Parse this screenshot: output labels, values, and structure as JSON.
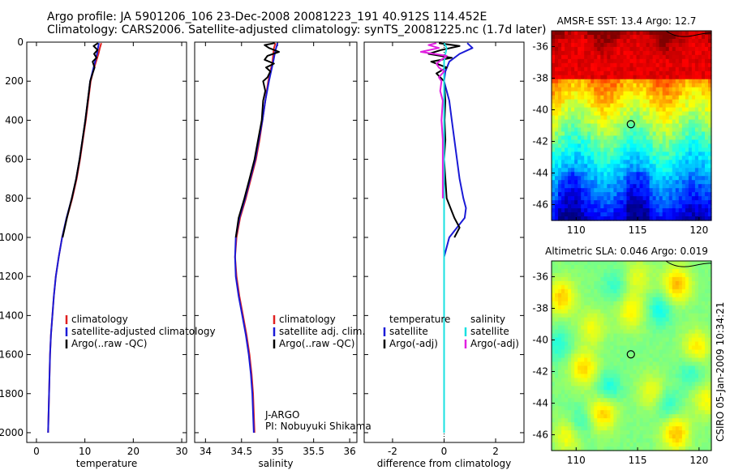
{
  "header": {
    "line1": "Argo profile: JA 5901206_106 23-Dec-2008 20081223_191 40.912S 114.452E",
    "line2": "Climatology: CARS2006. Satellite-adjusted climatology: synTS_20081225.nc (1.7d later)"
  },
  "side_label": "CSIRO 05-Jan-2009 10:34:21",
  "pi_label": {
    "line1": "J-ARGO",
    "line2": "PI: Nobuyuki Shikama"
  },
  "colors": {
    "climatology": "#e02020",
    "satellite": "#1a1ad6",
    "argo": "#000000",
    "salinity_satellite": "#19e0e0",
    "salinity_argo": "#e020e0"
  },
  "chart_data": [
    {
      "type": "line",
      "xlabel": "temperature",
      "ylim": [
        2050,
        0
      ],
      "xlim": [
        -2,
        31
      ],
      "xticks": [
        "0",
        "10",
        "20",
        "30"
      ],
      "yticks": [
        "0",
        "200",
        "400",
        "600",
        "800",
        "1000",
        "1200",
        "1400",
        "1600",
        "1800",
        "2000"
      ],
      "legend": [
        "climatology",
        "satellite-adjusted climatology",
        "Argo(..raw -QC)"
      ],
      "series": [
        {
          "name": "climatology",
          "y": [
            5,
            30,
            60,
            100,
            150,
            200,
            300,
            400,
            500,
            600,
            700,
            800,
            900,
            1000,
            1100,
            1200,
            1300,
            1400,
            1500,
            1600,
            1700,
            1800,
            1900,
            2000
          ],
          "x": [
            13.4,
            13.1,
            12.8,
            12.3,
            11.7,
            11.2,
            10.7,
            10.2,
            9.6,
            9.0,
            8.3,
            7.4,
            6.3,
            5.3,
            4.6,
            4.0,
            3.6,
            3.3,
            3.0,
            2.8,
            2.7,
            2.6,
            2.5,
            2.4
          ]
        },
        {
          "name": "satellite-adjusted climatology",
          "y": [
            5,
            30,
            60,
            100,
            150,
            200,
            300,
            400,
            500,
            600,
            700,
            800,
            900,
            1000,
            1100,
            1200,
            1300,
            1400,
            1500,
            1600,
            1700,
            1800,
            1900,
            2000
          ],
          "x": [
            12.9,
            12.7,
            12.5,
            12.1,
            11.6,
            11.1,
            10.6,
            10.1,
            9.5,
            8.9,
            8.2,
            7.3,
            6.2,
            5.3,
            4.6,
            4.0,
            3.6,
            3.3,
            3.0,
            2.8,
            2.7,
            2.6,
            2.5,
            2.4
          ]
        },
        {
          "name": "Argo(..raw -QC)",
          "y": [
            5,
            20,
            40,
            60,
            80,
            100,
            130,
            160,
            200,
            300,
            400,
            500,
            600,
            700,
            800,
            900,
            1000
          ],
          "x": [
            12.7,
            11.8,
            12.6,
            11.9,
            12.4,
            11.6,
            12.0,
            11.6,
            11.1,
            10.6,
            10.1,
            9.5,
            8.9,
            8.2,
            7.3,
            6.3,
            5.4
          ]
        }
      ]
    },
    {
      "type": "line",
      "xlabel": "salinity",
      "ylim": [
        2050,
        0
      ],
      "xlim": [
        33.85,
        36.1
      ],
      "xticks": [
        "34",
        "34.5",
        "35",
        "35.5",
        "36"
      ],
      "legend": [
        "climatology",
        "satellite adj. clim.",
        "Argo(..raw -QC)"
      ],
      "series": [
        {
          "name": "climatology",
          "y": [
            5,
            30,
            60,
            100,
            150,
            200,
            300,
            400,
            500,
            600,
            700,
            800,
            900,
            1000,
            1100,
            1200,
            1300,
            1400,
            1500,
            1600,
            1700,
            1800,
            1900,
            2000
          ],
          "x": [
            34.97,
            34.95,
            34.94,
            34.93,
            34.9,
            34.87,
            34.83,
            34.79,
            34.75,
            34.7,
            34.63,
            34.56,
            34.48,
            34.43,
            34.41,
            34.43,
            34.47,
            34.52,
            34.57,
            34.61,
            34.64,
            34.66,
            34.67,
            34.68
          ]
        },
        {
          "name": "satellite adj. clim.",
          "y": [
            5,
            30,
            60,
            100,
            150,
            200,
            300,
            400,
            500,
            600,
            700,
            800,
            900,
            1000,
            1100,
            1200,
            1300,
            1400,
            1500,
            1600,
            1700,
            1800,
            1900,
            2000
          ],
          "x": [
            35.0,
            34.98,
            34.96,
            34.94,
            34.91,
            34.88,
            34.83,
            34.79,
            34.74,
            34.69,
            34.62,
            34.55,
            34.47,
            34.42,
            34.41,
            34.42,
            34.46,
            34.51,
            34.56,
            34.6,
            34.63,
            34.65,
            34.66,
            34.67
          ]
        },
        {
          "name": "Argo(..raw -QC)",
          "y": [
            5,
            15,
            30,
            50,
            70,
            90,
            110,
            130,
            150,
            180,
            200,
            250,
            300,
            400,
            500,
            600,
            700,
            800,
            900,
            1000
          ],
          "x": [
            34.96,
            34.82,
            34.88,
            35.02,
            34.86,
            34.82,
            34.95,
            34.84,
            34.9,
            34.86,
            34.8,
            34.83,
            34.8,
            34.78,
            34.73,
            34.68,
            34.61,
            34.54,
            34.46,
            34.42
          ]
        }
      ]
    },
    {
      "type": "line",
      "xlabel": "difference from climatology",
      "ylim": [
        2050,
        0
      ],
      "xlim": [
        -3.1,
        3.1
      ],
      "xticks": [
        "-2",
        "0",
        "2"
      ],
      "legend": [
        "temperature",
        "satellite",
        "Argo(-adj)",
        "salinity",
        "satellite",
        "Argo(-adj)"
      ],
      "series": [
        {
          "name": "temperature satellite",
          "y": [
            5,
            30,
            60,
            100,
            150,
            200,
            250,
            300,
            400,
            500,
            600,
            700,
            800,
            850,
            900,
            950,
            1000,
            1100,
            1200,
            1400,
            1600,
            1800,
            2000
          ],
          "x": [
            0.9,
            1.1,
            0.6,
            0.2,
            0.05,
            0.0,
            0.1,
            0.2,
            0.3,
            0.4,
            0.5,
            0.6,
            0.75,
            0.85,
            0.8,
            0.5,
            0.2,
            0.0,
            0.0,
            0.0,
            0.0,
            0.0,
            0.0
          ]
        },
        {
          "name": "temperature Argo(-adj)",
          "y": [
            5,
            20,
            40,
            60,
            80,
            100,
            130,
            160,
            200,
            300,
            400,
            500,
            600,
            700,
            800,
            900,
            950,
            1000
          ],
          "x": [
            -0.2,
            0.6,
            -0.1,
            -0.6,
            0.3,
            -0.5,
            0.1,
            -0.3,
            0.0,
            0.05,
            0.02,
            0.05,
            0.0,
            0.05,
            0.1,
            0.4,
            0.6,
            0.4
          ]
        },
        {
          "name": "salinity satellite",
          "y": [
            5,
            30,
            60,
            100,
            150,
            200,
            300,
            400,
            600,
            800,
            1000,
            1200,
            1400,
            1600,
            1800,
            2000
          ],
          "x": [
            0.0,
            0.1,
            0.05,
            0.0,
            0.0,
            0.0,
            0.0,
            0.0,
            0.0,
            0.0,
            0.0,
            0.0,
            0.0,
            0.0,
            0.0,
            0.0
          ]
        },
        {
          "name": "salinity Argo(-adj)",
          "y": [
            5,
            15,
            30,
            50,
            70,
            90,
            110,
            130,
            150,
            180,
            200,
            250,
            300,
            400,
            500,
            600,
            700,
            800
          ],
          "x": [
            -0.3,
            -0.6,
            -0.2,
            -0.9,
            0.1,
            -0.1,
            -0.3,
            -0.2,
            0.0,
            -0.2,
            -0.1,
            -0.15,
            -0.05,
            -0.1,
            -0.05,
            -0.05,
            -0.05,
            -0.05
          ]
        }
      ]
    },
    {
      "type": "heatmap",
      "title": "AMSR-E SST: 13.4 Argo: 12.7",
      "xlim": [
        108,
        121
      ],
      "ylim": [
        -47,
        -35
      ],
      "xticks": [
        "110",
        "115",
        "120"
      ],
      "yticks": [
        "-36",
        "-38",
        "-40",
        "-42",
        "-44",
        "-46"
      ],
      "marker": {
        "x": 114.452,
        "y": -40.912
      }
    },
    {
      "type": "heatmap",
      "title": "Altimetric SLA: 0.046 Argo: 0.019",
      "xlim": [
        108,
        121
      ],
      "ylim": [
        -47,
        -35
      ],
      "xticks": [
        "110",
        "115",
        "120"
      ],
      "yticks": [
        "-36",
        "-38",
        "-40",
        "-42",
        "-44",
        "-46"
      ],
      "marker": {
        "x": 114.452,
        "y": -40.912
      }
    }
  ]
}
